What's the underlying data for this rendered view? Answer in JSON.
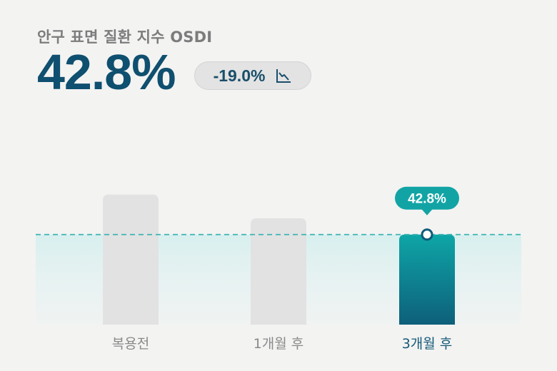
{
  "chart_data": {
    "type": "bar",
    "title": "안구 표면 질환 지수 OSDI",
    "highlight_value": "42.8%",
    "change": "-19.0%",
    "change_icon": "trend-down-icon",
    "categories": [
      "복용전",
      "1개월 후",
      "3개월 후"
    ],
    "values": [
      61.8,
      50.5,
      42.8
    ],
    "ylim": [
      0,
      100
    ],
    "grid": false,
    "highlighted_index": 2,
    "data_label": "42.8%",
    "reference_line": 42.8,
    "colors": {
      "bar_muted": "#e2e2e2",
      "bar_active_top": "#0ea6a7",
      "bar_active_bottom": "#0e5f7a",
      "title_value": "#0f4f6f",
      "label_pill": "#12a4a5",
      "reference_line": "#3fb3b3"
    }
  }
}
